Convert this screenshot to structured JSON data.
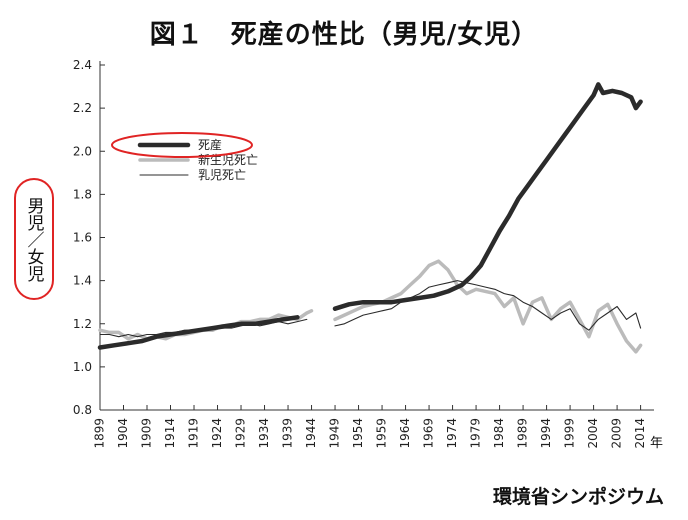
{
  "title": "図１　死産の性比（男児/女児）",
  "source": "環境省シンポジウム",
  "chart_data": {
    "type": "line",
    "xlabel": "年",
    "ylabel": "男児／女児",
    "xlim": [
      1899,
      2016
    ],
    "ylim": [
      0.8,
      2.4
    ],
    "yticks": [
      "0.8",
      "1.0",
      "1.2",
      "1.4",
      "1.6",
      "1.8",
      "2.0",
      "2.2",
      "2.4"
    ],
    "xticks": [
      "1899",
      "1904",
      "1909",
      "1914",
      "1919",
      "1924",
      "1929",
      "1934",
      "1939",
      "1944",
      "1949",
      "1954",
      "1959",
      "1964",
      "1969",
      "1974",
      "1979",
      "1984",
      "1989",
      "1994",
      "1999",
      "2004",
      "2009",
      "2014"
    ],
    "legend_position": "top-left",
    "grid": false,
    "series": [
      {
        "name": "死産",
        "color": "#2b2b2b",
        "style": "thick",
        "segments": [
          [
            [
              1899,
              1.09
            ],
            [
              1902,
              1.1
            ],
            [
              1905,
              1.11
            ],
            [
              1908,
              1.12
            ],
            [
              1911,
              1.14
            ],
            [
              1914,
              1.15
            ],
            [
              1917,
              1.16
            ],
            [
              1920,
              1.17
            ],
            [
              1923,
              1.18
            ],
            [
              1926,
              1.19
            ],
            [
              1929,
              1.2
            ],
            [
              1932,
              1.2
            ],
            [
              1935,
              1.21
            ],
            [
              1938,
              1.22
            ],
            [
              1941,
              1.23
            ]
          ],
          [
            [
              1949,
              1.27
            ],
            [
              1952,
              1.29
            ],
            [
              1955,
              1.3
            ],
            [
              1958,
              1.3
            ],
            [
              1961,
              1.3
            ],
            [
              1964,
              1.31
            ],
            [
              1967,
              1.32
            ],
            [
              1970,
              1.33
            ],
            [
              1973,
              1.35
            ],
            [
              1976,
              1.38
            ],
            [
              1978,
              1.42
            ],
            [
              1980,
              1.47
            ],
            [
              1982,
              1.55
            ],
            [
              1984,
              1.63
            ],
            [
              1986,
              1.7
            ],
            [
              1988,
              1.78
            ],
            [
              1990,
              1.84
            ],
            [
              1992,
              1.9
            ],
            [
              1994,
              1.96
            ],
            [
              1996,
              2.02
            ],
            [
              1998,
              2.08
            ],
            [
              2000,
              2.14
            ],
            [
              2002,
              2.2
            ],
            [
              2004,
              2.26
            ],
            [
              2005,
              2.31
            ],
            [
              2006,
              2.27
            ],
            [
              2008,
              2.28
            ],
            [
              2010,
              2.27
            ],
            [
              2012,
              2.25
            ],
            [
              2013,
              2.2
            ],
            [
              2014,
              2.23
            ]
          ]
        ]
      },
      {
        "name": "新生児死亡",
        "color": "#bbbbbb",
        "style": "medium",
        "segments": [
          [
            [
              1899,
              1.17
            ],
            [
              1901,
              1.16
            ],
            [
              1903,
              1.16
            ],
            [
              1905,
              1.13
            ],
            [
              1907,
              1.15
            ],
            [
              1909,
              1.13
            ],
            [
              1911,
              1.14
            ],
            [
              1913,
              1.13
            ],
            [
              1915,
              1.15
            ],
            [
              1917,
              1.15
            ],
            [
              1919,
              1.16
            ],
            [
              1921,
              1.17
            ],
            [
              1923,
              1.17
            ],
            [
              1925,
              1.19
            ],
            [
              1927,
              1.19
            ],
            [
              1929,
              1.21
            ],
            [
              1931,
              1.21
            ],
            [
              1933,
              1.22
            ],
            [
              1935,
              1.22
            ],
            [
              1937,
              1.24
            ],
            [
              1939,
              1.23
            ],
            [
              1941,
              1.22
            ],
            [
              1943,
              1.25
            ],
            [
              1944,
              1.26
            ]
          ],
          [
            [
              1949,
              1.22
            ],
            [
              1951,
              1.24
            ],
            [
              1953,
              1.26
            ],
            [
              1955,
              1.28
            ],
            [
              1957,
              1.29
            ],
            [
              1959,
              1.3
            ],
            [
              1961,
              1.32
            ],
            [
              1963,
              1.34
            ],
            [
              1965,
              1.38
            ],
            [
              1967,
              1.42
            ],
            [
              1969,
              1.47
            ],
            [
              1971,
              1.49
            ],
            [
              1973,
              1.45
            ],
            [
              1975,
              1.38
            ],
            [
              1977,
              1.34
            ],
            [
              1979,
              1.36
            ],
            [
              1981,
              1.35
            ],
            [
              1983,
              1.34
            ],
            [
              1985,
              1.28
            ],
            [
              1987,
              1.32
            ],
            [
              1989,
              1.2
            ],
            [
              1991,
              1.3
            ],
            [
              1993,
              1.32
            ],
            [
              1995,
              1.22
            ],
            [
              1997,
              1.27
            ],
            [
              1999,
              1.3
            ],
            [
              2001,
              1.22
            ],
            [
              2003,
              1.14
            ],
            [
              2005,
              1.26
            ],
            [
              2007,
              1.29
            ],
            [
              2009,
              1.2
            ],
            [
              2011,
              1.12
            ],
            [
              2013,
              1.07
            ],
            [
              2014,
              1.1
            ]
          ]
        ]
      },
      {
        "name": "乳児死亡",
        "color": "#2b2b2b",
        "style": "thin",
        "segments": [
          [
            [
              1899,
              1.15
            ],
            [
              1901,
              1.15
            ],
            [
              1903,
              1.14
            ],
            [
              1905,
              1.15
            ],
            [
              1907,
              1.14
            ],
            [
              1909,
              1.15
            ],
            [
              1911,
              1.15
            ],
            [
              1913,
              1.16
            ],
            [
              1915,
              1.16
            ],
            [
              1917,
              1.17
            ],
            [
              1919,
              1.17
            ],
            [
              1921,
              1.17
            ],
            [
              1923,
              1.18
            ],
            [
              1925,
              1.18
            ],
            [
              1927,
              1.18
            ],
            [
              1929,
              1.19
            ],
            [
              1931,
              1.2
            ],
            [
              1933,
              1.19
            ],
            [
              1935,
              1.2
            ],
            [
              1937,
              1.21
            ],
            [
              1939,
              1.2
            ],
            [
              1941,
              1.21
            ],
            [
              1943,
              1.22
            ]
          ],
          [
            [
              1949,
              1.19
            ],
            [
              1951,
              1.2
            ],
            [
              1953,
              1.22
            ],
            [
              1955,
              1.24
            ],
            [
              1957,
              1.25
            ],
            [
              1959,
              1.26
            ],
            [
              1961,
              1.27
            ],
            [
              1963,
              1.3
            ],
            [
              1965,
              1.32
            ],
            [
              1967,
              1.34
            ],
            [
              1969,
              1.37
            ],
            [
              1971,
              1.38
            ],
            [
              1973,
              1.39
            ],
            [
              1975,
              1.4
            ],
            [
              1977,
              1.39
            ],
            [
              1979,
              1.38
            ],
            [
              1981,
              1.37
            ],
            [
              1983,
              1.36
            ],
            [
              1985,
              1.34
            ],
            [
              1987,
              1.33
            ],
            [
              1989,
              1.3
            ],
            [
              1991,
              1.28
            ],
            [
              1993,
              1.25
            ],
            [
              1995,
              1.22
            ],
            [
              1997,
              1.25
            ],
            [
              1999,
              1.27
            ],
            [
              2001,
              1.2
            ],
            [
              2003,
              1.17
            ],
            [
              2005,
              1.22
            ],
            [
              2007,
              1.25
            ],
            [
              2009,
              1.28
            ],
            [
              2011,
              1.22
            ],
            [
              2013,
              1.25
            ],
            [
              2014,
              1.18
            ]
          ]
        ]
      }
    ]
  }
}
